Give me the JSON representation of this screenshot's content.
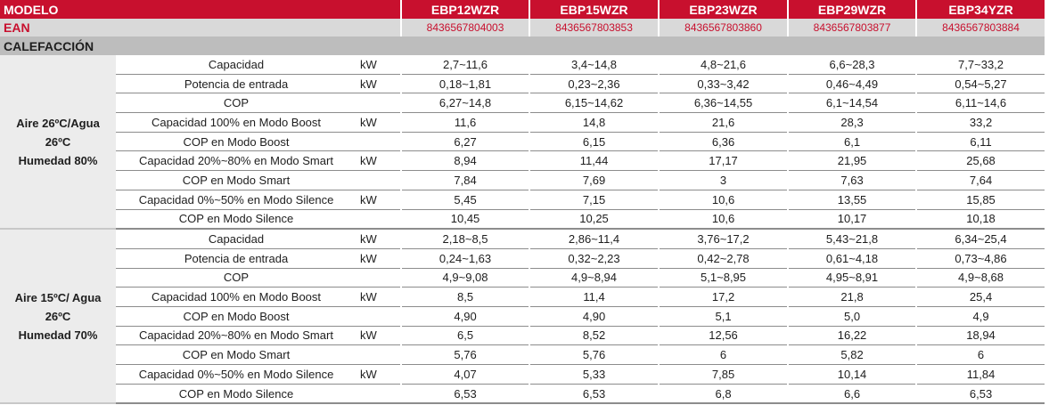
{
  "header": {
    "modelo_label": "MODELO",
    "models": [
      "EBP12WZR",
      "EBP15WZR",
      "EBP23WZR",
      "EBP29WZR",
      "EBP34YZR"
    ]
  },
  "ean": {
    "label": "EAN",
    "codes": [
      "8436567804003",
      "8436567803853",
      "8436567803860",
      "8436567803877",
      "8436567803884"
    ]
  },
  "section": {
    "title": "CALEFACCIÓN"
  },
  "colors": {
    "brand_red": "#c8102e",
    "ean_row_bg": "#d9d9d9",
    "section_bg": "#bdbdbd",
    "group_bg": "#ececec"
  },
  "groups": [
    {
      "condition_lines": [
        "Aire 26ºC/Agua",
        "26ºC",
        "Humedad 80%"
      ],
      "rows": [
        {
          "label": "Capacidad",
          "unit": "kW",
          "values": [
            "2,7~11,6",
            "3,4~14,8",
            "4,8~21,6",
            "6,6~28,3",
            "7,7~33,2"
          ]
        },
        {
          "label": "Potencia de entrada",
          "unit": "kW",
          "values": [
            "0,18~1,81",
            "0,23~2,36",
            "0,33~3,42",
            "0,46~4,49",
            "0,54~5,27"
          ]
        },
        {
          "label": "COP",
          "unit": "",
          "values": [
            "6,27~14,8",
            "6,15~14,62",
            "6,36~14,55",
            "6,1~14,54",
            "6,11~14,6"
          ]
        },
        {
          "label": "Capacidad 100% en Modo Boost",
          "unit": "kW",
          "values": [
            "11,6",
            "14,8",
            "21,6",
            "28,3",
            "33,2"
          ]
        },
        {
          "label": "COP en Modo Boost",
          "unit": "",
          "values": [
            "6,27",
            "6,15",
            "6,36",
            "6,1",
            "6,11"
          ]
        },
        {
          "label": "Capacidad 20%~80% en Modo Smart",
          "unit": "kW",
          "values": [
            "8,94",
            "11,44",
            "17,17",
            "21,95",
            "25,68"
          ]
        },
        {
          "label": "COP en Modo Smart",
          "unit": "",
          "values": [
            "7,84",
            "7,69",
            "3",
            "7,63",
            "7,64"
          ]
        },
        {
          "label": "Capacidad 0%~50%  en Modo Silence",
          "unit": "kW",
          "values": [
            "5,45",
            "7,15",
            "10,6",
            "13,55",
            "15,85"
          ]
        },
        {
          "label": "COP en Modo Silence",
          "unit": "",
          "values": [
            "10,45",
            "10,25",
            "10,6",
            "10,17",
            "10,18"
          ]
        }
      ]
    },
    {
      "condition_lines": [
        "Aire 15ºC/ Agua",
        "26ºC",
        "Humedad 70%"
      ],
      "rows": [
        {
          "label": "Capacidad",
          "unit": "kW",
          "values": [
            "2,18~8,5",
            "2,86~11,4",
            "3,76~17,2",
            "5,43~21,8",
            "6,34~25,4"
          ]
        },
        {
          "label": "Potencia de entrada",
          "unit": "kW",
          "values": [
            "0,24~1,63",
            "0,32~2,23",
            "0,42~2,78",
            "0,61~4,18",
            "0,73~4,86"
          ]
        },
        {
          "label": "COP",
          "unit": "",
          "values": [
            "4,9~9,08",
            "4,9~8,94",
            "5,1~8,95",
            "4,95~8,91",
            "4,9~8,68"
          ]
        },
        {
          "label": "Capacidad 100% en Modo Boost",
          "unit": "kW",
          "values": [
            "8,5",
            "11,4",
            "17,2",
            "21,8",
            "25,4"
          ]
        },
        {
          "label": "COP en Modo Boost",
          "unit": "",
          "values": [
            "4,90",
            "4,90",
            "5,1",
            "5,0",
            "4,9"
          ]
        },
        {
          "label": "Capacidad 20%~80% en Modo Smart",
          "unit": "kW",
          "values": [
            "6,5",
            "8,52",
            "12,56",
            "16,22",
            "18,94"
          ]
        },
        {
          "label": "COP en Modo Smart",
          "unit": "",
          "values": [
            "5,76",
            "5,76",
            "6",
            "5,82",
            "6"
          ]
        },
        {
          "label": "Capacidad 0%~50%  en Modo Silence",
          "unit": "kW",
          "values": [
            "4,07",
            "5,33",
            "7,85",
            "10,14",
            "11,84"
          ]
        },
        {
          "label": "COP en Modo Silence",
          "unit": "",
          "values": [
            "6,53",
            "6,53",
            "6,8",
            "6,6",
            "6,53"
          ]
        }
      ]
    }
  ]
}
